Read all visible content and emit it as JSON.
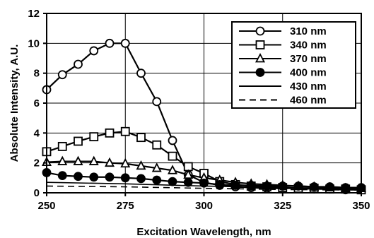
{
  "chart_data": {
    "type": "line",
    "xlabel": "Excitation Wavelength, nm",
    "ylabel": "Absolute Intensity, A.U.",
    "xlim": [
      250,
      350
    ],
    "ylim": [
      0,
      12
    ],
    "xticks": [
      250,
      275,
      300,
      325,
      350
    ],
    "yticks": [
      0,
      2,
      4,
      6,
      8,
      10,
      12
    ],
    "grid": true,
    "legend_position": "top-right",
    "series": [
      {
        "name": "310 nm",
        "marker": "open-circle",
        "line": "solid",
        "x": [
          250,
          255,
          260,
          265,
          270,
          275,
          280,
          285,
          290,
          295,
          300,
          305,
          310,
          315,
          320,
          325,
          330,
          335,
          340,
          345,
          350
        ],
        "values": [
          6.9,
          7.9,
          8.6,
          9.5,
          10.0,
          10.0,
          8.0,
          6.1,
          3.5,
          1.2,
          0.7,
          0.5,
          0.4,
          0.35,
          0.3,
          0.3,
          0.3,
          0.25,
          0.25,
          0.2,
          0.2
        ]
      },
      {
        "name": "340 nm",
        "marker": "open-square",
        "line": "solid",
        "x": [
          250,
          255,
          260,
          265,
          270,
          275,
          280,
          285,
          290,
          295,
          300,
          305,
          310,
          315,
          320,
          325,
          330,
          335,
          340,
          345,
          350
        ],
        "values": [
          2.75,
          3.1,
          3.45,
          3.75,
          4.0,
          4.1,
          3.7,
          3.2,
          2.45,
          1.75,
          1.3,
          0.75,
          0.55,
          0.45,
          0.4,
          0.35,
          0.3,
          0.3,
          0.25,
          0.25,
          0.2
        ]
      },
      {
        "name": "370 nm",
        "marker": "open-triangle",
        "line": "solid",
        "x": [
          250,
          255,
          260,
          265,
          270,
          275,
          280,
          285,
          290,
          295,
          300,
          305,
          310,
          315,
          320,
          325,
          330,
          335,
          340,
          345,
          350
        ],
        "values": [
          2.05,
          2.1,
          2.1,
          2.1,
          2.0,
          1.95,
          1.8,
          1.65,
          1.5,
          1.2,
          1.0,
          0.85,
          0.7,
          0.6,
          0.55,
          0.5,
          0.45,
          0.4,
          0.35,
          0.3,
          0.3
        ]
      },
      {
        "name": "400 nm",
        "marker": "filled-circle",
        "line": "solid",
        "x": [
          250,
          255,
          260,
          265,
          270,
          275,
          280,
          285,
          290,
          295,
          300,
          305,
          310,
          315,
          320,
          325,
          330,
          335,
          340,
          345,
          350
        ],
        "values": [
          1.35,
          1.15,
          1.1,
          1.05,
          1.05,
          1.0,
          0.95,
          0.85,
          0.75,
          0.7,
          0.65,
          0.55,
          0.5,
          0.5,
          0.45,
          0.45,
          0.45,
          0.4,
          0.4,
          0.35,
          0.35
        ]
      },
      {
        "name": "430 nm",
        "marker": "none",
        "line": "solid",
        "x": [
          250,
          275,
          300,
          325,
          350
        ],
        "values": [
          0.7,
          0.6,
          0.45,
          0.35,
          0.3
        ]
      },
      {
        "name": "460 nm",
        "marker": "none",
        "line": "dashed",
        "x": [
          250,
          275,
          300,
          325,
          350
        ],
        "values": [
          0.45,
          0.4,
          0.3,
          0.22,
          0.18
        ]
      }
    ]
  }
}
